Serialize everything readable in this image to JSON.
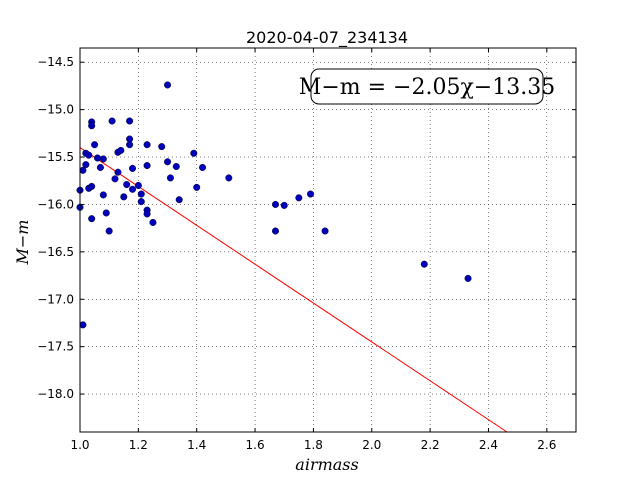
{
  "chart_data": {
    "type": "scatter",
    "title": "2020-04-07_234134",
    "xlabel": "airmass",
    "ylabel": "M−m",
    "annotation": "M−m = −2.05χ−13.35",
    "xlim": [
      1.0,
      2.7
    ],
    "ylim": [
      -18.4,
      -14.35
    ],
    "grid": true,
    "x_ticks": [
      1.0,
      1.2,
      1.4,
      1.6,
      1.8,
      2.0,
      2.2,
      2.4,
      2.6
    ],
    "x_tick_labels": [
      "1.0",
      "1.2",
      "1.4",
      "1.6",
      "1.8",
      "2.0",
      "2.2",
      "2.4",
      "2.6"
    ],
    "y_ticks": [
      -14.5,
      -15.0,
      -15.5,
      -16.0,
      -16.5,
      -17.0,
      -17.5,
      -18.0
    ],
    "y_tick_labels": [
      "−14.5",
      "−15.0",
      "−15.5",
      "−16.0",
      "−16.5",
      "−17.0",
      "−17.5",
      "−18.0"
    ],
    "fit_line": {
      "slope": -2.05,
      "intercept": -13.35,
      "color": "#ff0000"
    },
    "point_color": "#0000bb",
    "points": [
      [
        1.0,
        -15.85
      ],
      [
        1.0,
        -16.03
      ],
      [
        1.01,
        -15.64
      ],
      [
        1.02,
        -15.46
      ],
      [
        1.02,
        -15.58
      ],
      [
        1.03,
        -15.48
      ],
      [
        1.03,
        -15.83
      ],
      [
        1.04,
        -15.81
      ],
      [
        1.04,
        -16.15
      ],
      [
        1.04,
        -15.13
      ],
      [
        1.04,
        -15.17
      ],
      [
        1.05,
        -15.37
      ],
      [
        1.06,
        -15.51
      ],
      [
        1.07,
        -15.61
      ],
      [
        1.08,
        -15.52
      ],
      [
        1.08,
        -15.9
      ],
      [
        1.09,
        -16.09
      ],
      [
        1.1,
        -16.28
      ],
      [
        1.11,
        -15.12
      ],
      [
        1.12,
        -15.73
      ],
      [
        1.13,
        -15.45
      ],
      [
        1.13,
        -15.66
      ],
      [
        1.14,
        -15.43
      ],
      [
        1.15,
        -15.92
      ],
      [
        1.16,
        -15.79
      ],
      [
        1.17,
        -15.12
      ],
      [
        1.17,
        -15.31
      ],
      [
        1.17,
        -15.37
      ],
      [
        1.18,
        -15.62
      ],
      [
        1.18,
        -15.84
      ],
      [
        1.2,
        -15.8
      ],
      [
        1.21,
        -15.89
      ],
      [
        1.21,
        -15.97
      ],
      [
        1.23,
        -16.06
      ],
      [
        1.23,
        -16.1
      ],
      [
        1.23,
        -15.37
      ],
      [
        1.23,
        -15.59
      ],
      [
        1.25,
        -16.19
      ],
      [
        1.28,
        -15.39
      ],
      [
        1.3,
        -14.74
      ],
      [
        1.3,
        -15.55
      ],
      [
        1.31,
        -15.72
      ],
      [
        1.33,
        -15.6
      ],
      [
        1.34,
        -15.95
      ],
      [
        1.39,
        -15.46
      ],
      [
        1.4,
        -15.82
      ],
      [
        1.42,
        -15.61
      ],
      [
        1.51,
        -15.72
      ],
      [
        1.67,
        -16.0
      ],
      [
        1.67,
        -16.28
      ],
      [
        1.7,
        -16.01
      ],
      [
        1.75,
        -15.93
      ],
      [
        1.79,
        -15.89
      ],
      [
        1.84,
        -16.28
      ],
      [
        2.18,
        -16.63
      ],
      [
        2.33,
        -16.78
      ],
      [
        1.01,
        -17.27
      ]
    ]
  }
}
